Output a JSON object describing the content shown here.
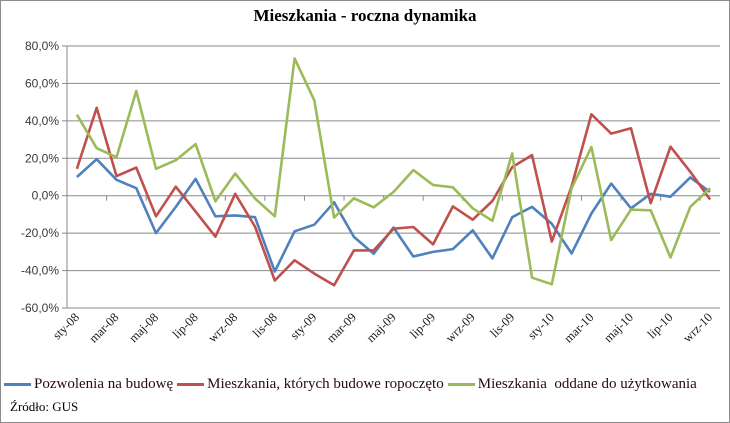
{
  "chart_data": {
    "type": "line",
    "title": "Mieszkania - roczna dynamika",
    "xlabel": "",
    "ylabel": "",
    "ylim": [
      -60,
      80
    ],
    "ytick_step": 20,
    "ytick_labels": [
      "80,0%",
      "60,0%",
      "40,0%",
      "20,0%",
      "0,0%",
      "-20,0%",
      "-40,0%",
      "-60,0%"
    ],
    "grid": true,
    "legend_position": "bottom",
    "x": [
      "sty-08",
      "lut-08",
      "mar-08",
      "kwi-08",
      "maj-08",
      "cze-08",
      "lip-08",
      "sie-08",
      "wrz-08",
      "paź-08",
      "lis-08",
      "gru-08",
      "sty-09",
      "lut-09",
      "mar-09",
      "kwi-09",
      "maj-09",
      "cze-09",
      "lip-09",
      "sie-09",
      "wrz-09",
      "paź-09",
      "lis-09",
      "gru-09",
      "sty-10",
      "lut-10",
      "mar-10",
      "kwi-10",
      "maj-10",
      "cze-10",
      "lip-10",
      "sie-10",
      "wrz-10"
    ],
    "xtick_labels": [
      "sty-08",
      "mar-08",
      "maj-08",
      "lip-08",
      "wrz-08",
      "lis-08",
      "sty-09",
      "mar-09",
      "maj-09",
      "lip-09",
      "wrz-09",
      "lis-09",
      "sty-10",
      "mar-10",
      "maj-10",
      "lip-10",
      "wrz-10"
    ],
    "series": [
      {
        "name": "Pozwolenia na budowę",
        "color": "#4f81bd",
        "values": [
          10,
          19.5,
          8.5,
          4,
          -20,
          -6,
          9,
          -11,
          -10.5,
          -11.5,
          -40.5,
          -19,
          -15.5,
          -3.5,
          -22,
          -31,
          -17,
          -32.5,
          -30,
          -28.5,
          -18.5,
          -33.5,
          -11.5,
          -6,
          -15,
          -30.8,
          -9.5,
          6.5,
          -6.7,
          1,
          -0.5,
          9.8,
          2
        ]
      },
      {
        "name": "Mieszkania, których budowe ropoczęto",
        "color": "#c0504d",
        "values": [
          14.4,
          47,
          10.5,
          15,
          -11,
          4.8,
          -8.5,
          -21.9,
          1,
          -16.5,
          -45.3,
          -34.5,
          -41.6,
          -47.8,
          -29.2,
          -29.2,
          -17.6,
          -16.7,
          -26,
          -5.7,
          -12.8,
          -2.8,
          15.3,
          21.7,
          -24.5,
          5,
          43.5,
          33.2,
          36,
          -4,
          26.2,
          12.8,
          -2
        ]
      },
      {
        "name": "Mieszkania  oddane do użytkowania",
        "color": "#9bbb59",
        "values": [
          43.3,
          25.4,
          20.6,
          56,
          14.4,
          19,
          27.6,
          -3,
          11.8,
          -1.5,
          -11,
          73.4,
          51,
          -11.7,
          -1.4,
          -6.2,
          2,
          13.7,
          5.7,
          4.5,
          -6.7,
          -13.4,
          22.6,
          -43.8,
          -47.3,
          4,
          26,
          -23.7,
          -7.4,
          -7.8,
          -33,
          -5.9,
          4
        ]
      }
    ]
  },
  "footer": {
    "source": "Źródło: GUS"
  }
}
